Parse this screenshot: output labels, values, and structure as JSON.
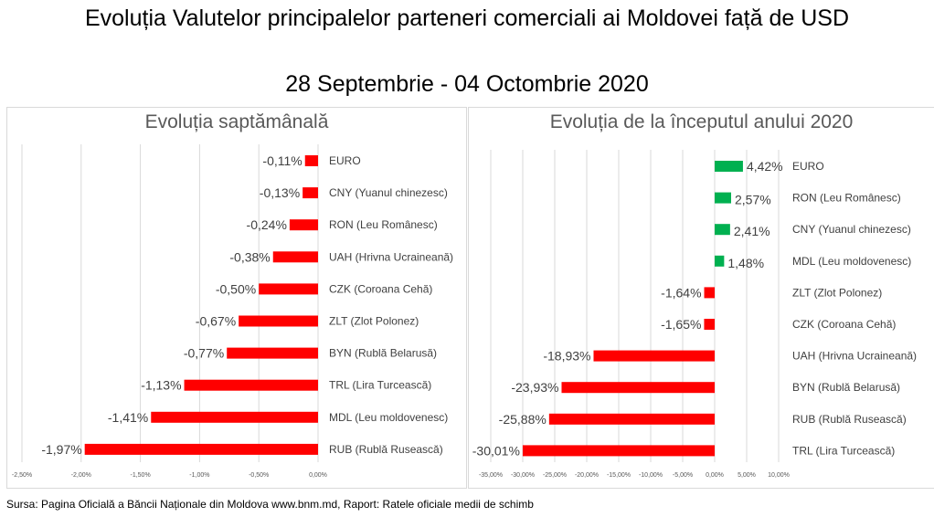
{
  "title": "Evoluția Valutelor principalelor parteneri comerciali ai Moldovei față de USD",
  "subtitle": "28 Septembrie - 04 Octombrie 2020",
  "source": "Sursa: Pagina Oficială a Băncii Naționale din Moldova www.bnm.md, Raport: Ratele oficiale medii de schimb",
  "colors": {
    "negative": "#ff0000",
    "positive": "#00b050"
  },
  "chart_data": [
    {
      "type": "bar",
      "orientation": "horizontal",
      "title": "Evoluția saptămânală",
      "categories": [
        "EURO",
        "CNY (Yuanul chinezesc)",
        "RON (Leu Românesc)",
        "UAH (Hrivna Ucraineană)",
        "CZK (Coroana Cehă)",
        "ZLT (Zlot Polonez)",
        "BYN (Rublă Belarusă)",
        "TRL (Lira Turcească)",
        "MDL (Leu moldovenesc)",
        "RUB (Rublă Rusească)"
      ],
      "values": [
        -0.11,
        -0.13,
        -0.24,
        -0.38,
        -0.5,
        -0.67,
        -0.77,
        -1.13,
        -1.41,
        -1.97
      ],
      "data_labels": [
        "-0,11%",
        "-0,13%",
        "-0,24%",
        "-0,38%",
        "-0,50%",
        "-0,67%",
        "-0,77%",
        "-1,13%",
        "-1,41%",
        "-1,97%"
      ],
      "xlim": [
        -2.5,
        0
      ],
      "xticks": [
        "-2,50%",
        "-2,00%",
        "-1,50%",
        "-1,00%",
        "-0,50%",
        "0,00%"
      ],
      "xtick_values": [
        -2.5,
        -2,
        -1.5,
        -1,
        -0.5,
        0
      ],
      "grid": true
    },
    {
      "type": "bar",
      "orientation": "horizontal",
      "title": "Evoluția de la începutul anului 2020",
      "categories": [
        "EURO",
        "RON (Leu Românesc)",
        "CNY (Yuanul chinezesc)",
        "MDL (Leu moldovenesc)",
        "ZLT (Zlot Polonez)",
        "CZK (Coroana Cehă)",
        "UAH (Hrivna Ucraineană)",
        "BYN (Rublă Belarusă)",
        "RUB (Rublă Rusească)",
        "TRL (Lira Turcească)"
      ],
      "values": [
        4.42,
        2.57,
        2.41,
        1.48,
        -1.64,
        -1.65,
        -18.93,
        -23.93,
        -25.88,
        -30.01
      ],
      "data_labels": [
        "4,42%",
        "2,57%",
        "2,41%",
        "1,48%",
        "-1,64%",
        "-1,65%",
        "-18,93%",
        "-23,93%",
        "-25,88%",
        "-30,01%"
      ],
      "xlim": [
        -35,
        10
      ],
      "xticks": [
        "-35,00%",
        "-30,00%",
        "-25,00%",
        "-20,00%",
        "-15,00%",
        "-10,00%",
        "-5,00%",
        "0,00%",
        "5,00%",
        "10,00%"
      ],
      "xtick_values": [
        -35,
        -30,
        -25,
        -20,
        -15,
        -10,
        -5,
        0,
        5,
        10
      ],
      "grid": true
    }
  ]
}
